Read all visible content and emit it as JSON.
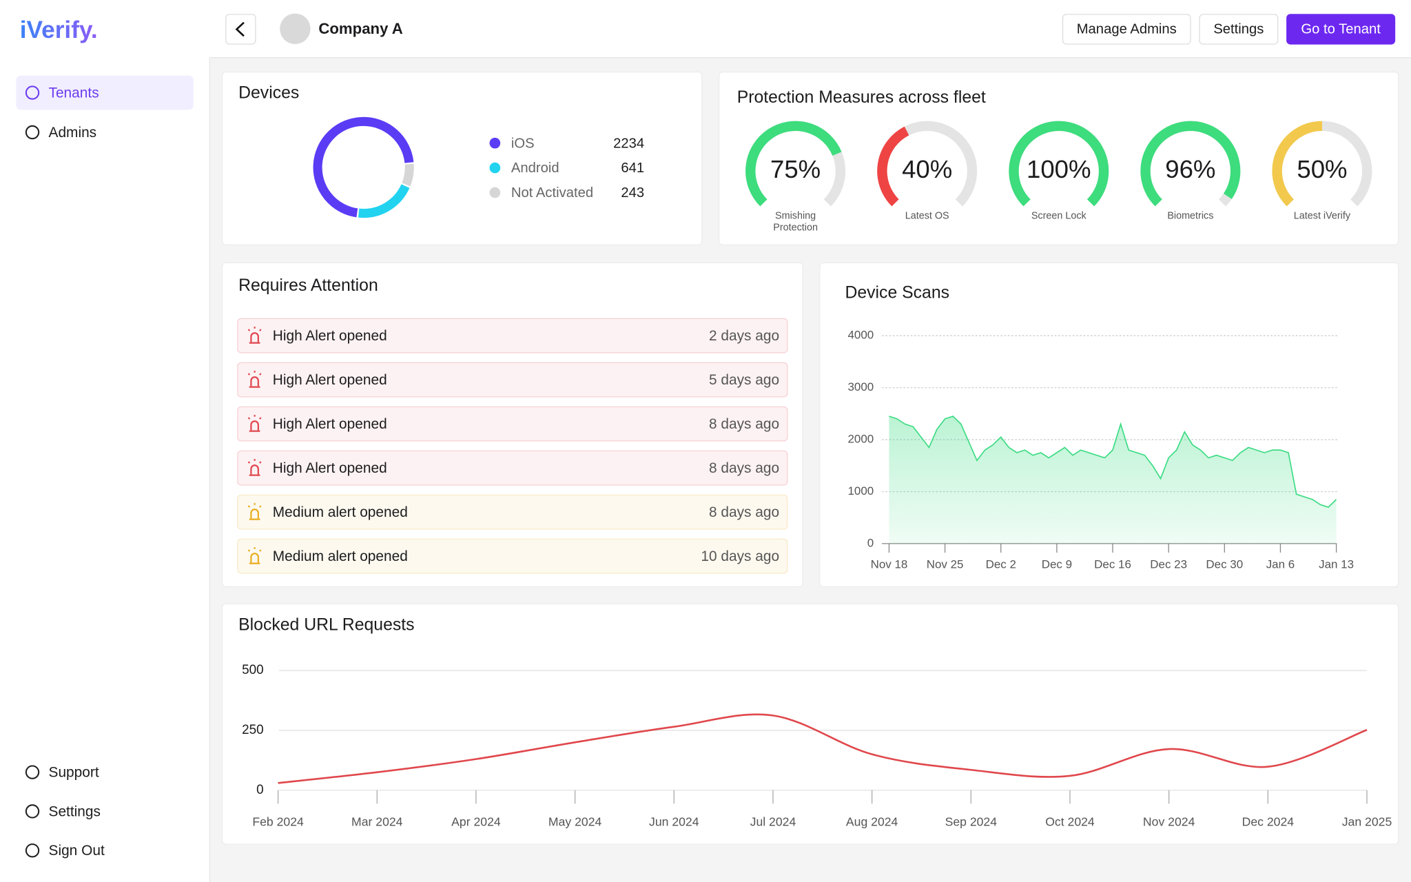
{
  "sidebar": {
    "logo": "iVerify.",
    "nav": [
      "Tenants",
      "Admins"
    ],
    "active": 0,
    "footer": [
      "Support",
      "Settings",
      "Sign Out"
    ]
  },
  "header": {
    "company": "Company A",
    "buttons": [
      "Manage Admins",
      "Settings",
      "Go to Tenant"
    ],
    "primary": 2
  },
  "attention": {
    "title": "Requires Attention",
    "items": [
      {
        "title": "High Alert opened",
        "time": "2 days ago",
        "color": "#e0464e"
      },
      {
        "title": "High Alert opened",
        "time": "5 days ago",
        "color": "#e0464e"
      },
      {
        "title": "High Alert opened",
        "time": "8 days ago",
        "color": "#e0464e"
      },
      {
        "title": "High Alert opened",
        "time": "8 days ago",
        "color": "#e0464e"
      },
      {
        "title": "Medium alert opened",
        "time": "8 days ago",
        "color": "#e9ad1f"
      },
      {
        "title": "Medium alert opened",
        "time": "10 days ago",
        "color": "#e9ad1f"
      }
    ]
  },
  "chart_data": [
    {
      "type": "pie",
      "title": "Devices",
      "categories": [
        "iOS",
        "Android",
        "Not Activated"
      ],
      "values": [
        2234,
        641,
        243
      ],
      "colors": [
        "#5b3cf5",
        "#22d3f0",
        "#d6d6d6"
      ]
    },
    {
      "type": "gauge",
      "title": "Protection Measures across fleet",
      "categories": [
        "Smishing Protection",
        "Latest OS",
        "Screen Lock",
        "Biometrics",
        "Latest iVerify"
      ],
      "values": [
        75,
        40,
        100,
        96,
        50
      ],
      "value_labels": [
        "75%",
        "40%",
        "100%",
        "96%",
        "50%"
      ],
      "colors": [
        "#3ddc7d",
        "#ef4444",
        "#3ddc7d",
        "#3ddc7d",
        "#f2c94c"
      ],
      "ylim": [
        0,
        100
      ]
    },
    {
      "type": "area",
      "title": "Device Scans",
      "color": "#3ddc84",
      "ylim": [
        0,
        4000
      ],
      "yticks": [
        0,
        1000,
        2000,
        3000,
        4000
      ],
      "grid": true,
      "categories": [
        "Nov 18",
        null,
        null,
        null,
        null,
        null,
        null,
        "Nov 25",
        null,
        null,
        null,
        null,
        null,
        null,
        "Dec 2",
        null,
        null,
        null,
        null,
        null,
        null,
        "Dec 9",
        null,
        null,
        null,
        null,
        null,
        null,
        "Dec 16",
        null,
        null,
        null,
        null,
        null,
        null,
        "Dec 23",
        null,
        null,
        null,
        null,
        null,
        null,
        "Dec 30",
        null,
        null,
        null,
        null,
        null,
        null,
        "Jan 6",
        null,
        null,
        null,
        null,
        null,
        null,
        "Jan 13"
      ],
      "values": [
        2450,
        2400,
        2300,
        2250,
        2050,
        1850,
        2200,
        2400,
        2450,
        2300,
        1950,
        1600,
        1800,
        1900,
        2050,
        1850,
        1750,
        1800,
        1700,
        1750,
        1650,
        1750,
        1850,
        1700,
        1800,
        1750,
        1700,
        1650,
        1800,
        2300,
        1800,
        1750,
        1700,
        1500,
        1250,
        1650,
        1800,
        2150,
        1900,
        1800,
        1650,
        1700,
        1650,
        1600,
        1750,
        1850,
        1800,
        1750,
        1800,
        1800,
        1750,
        950,
        900,
        850,
        750,
        700,
        850
      ]
    },
    {
      "type": "line",
      "title": "Blocked URL Requests",
      "color": "#e0474c",
      "ylim": [
        0,
        500
      ],
      "yticks": [
        0,
        250,
        500
      ],
      "grid": true,
      "categories": [
        "Feb 2024",
        "Mar 2024",
        "Apr 2024",
        "May 2024",
        "Jun 2024",
        "Jul 2024",
        "Aug 2024",
        "Sep 2024",
        "Oct 2024",
        "Nov 2024",
        "Dec 2024",
        "Jan 2025"
      ],
      "values": [
        30,
        75,
        130,
        200,
        265,
        312,
        150,
        85,
        60,
        172,
        98,
        252
      ]
    }
  ]
}
